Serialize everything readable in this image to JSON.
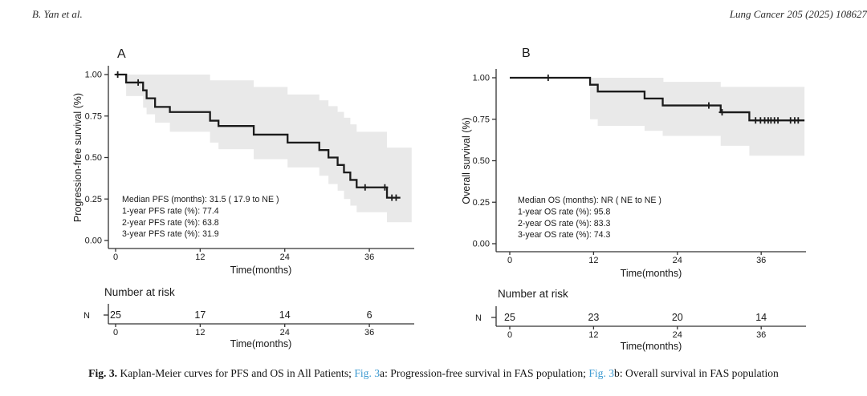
{
  "header": {
    "left": "B. Yan et al.",
    "right": "Lung Cancer 205 (2025) 108627"
  },
  "caption": {
    "segments": [
      {
        "text": "Fig. 3.",
        "style": "bold"
      },
      {
        "text": " Kaplan-Meier curves for PFS and OS in All Patients; ",
        "style": "plain"
      },
      {
        "text": "Fig. 3",
        "style": "link"
      },
      {
        "text": "a: Progression-free survival in FAS population; ",
        "style": "plain"
      },
      {
        "text": "Fig. 3",
        "style": "link"
      },
      {
        "text": "b: Overall survival in FAS population",
        "style": "plain"
      }
    ],
    "link_color": "#3d9ad1"
  },
  "colors": {
    "curve": "#1b1b1b",
    "ci_band": "#e9e9e9",
    "axis": "#333333",
    "text": "#1a1a1a"
  },
  "chart_data": [
    {
      "type": "line",
      "subtype": "kaplan-meier-step",
      "panel_label": "A",
      "ylabel": "Progression-free survival (%)",
      "xlabel": "Time(months)",
      "x_ticks": [
        0,
        12,
        24,
        36
      ],
      "y_ticks": [
        {
          "label": "1.00",
          "value": 1.0
        },
        {
          "label": "0.75",
          "value": 0.75
        },
        {
          "label": "0.50",
          "value": 0.5
        },
        {
          "label": "0.25",
          "value": 0.25
        },
        {
          "label": "0.00",
          "value": 0.0
        }
      ],
      "xlim": [
        0,
        42.5
      ],
      "ylim": [
        0,
        1.0
      ],
      "annotations": [
        "Median PFS (months): 31.5 ( 17.9 to NE )",
        "1-year PFS rate (%): 77.4",
        "2-year PFS rate (%): 63.8",
        "3-year PFS rate (%): 31.9"
      ],
      "survival_steps": [
        [
          0,
          1.0
        ],
        [
          1.5,
          1.0
        ],
        [
          1.5,
          0.952
        ],
        [
          3.9,
          0.952
        ],
        [
          3.9,
          0.905
        ],
        [
          4.4,
          0.905
        ],
        [
          4.4,
          0.857
        ],
        [
          5.6,
          0.857
        ],
        [
          5.6,
          0.805
        ],
        [
          7.7,
          0.805
        ],
        [
          7.7,
          0.774
        ],
        [
          13.4,
          0.774
        ],
        [
          13.4,
          0.722
        ],
        [
          14.6,
          0.722
        ],
        [
          14.6,
          0.69
        ],
        [
          19.6,
          0.69
        ],
        [
          19.6,
          0.638
        ],
        [
          24.4,
          0.638
        ],
        [
          24.4,
          0.59
        ],
        [
          28.9,
          0.59
        ],
        [
          28.9,
          0.545
        ],
        [
          30.2,
          0.545
        ],
        [
          30.2,
          0.5
        ],
        [
          31.5,
          0.5
        ],
        [
          31.5,
          0.455
        ],
        [
          32.4,
          0.455
        ],
        [
          32.4,
          0.41
        ],
        [
          33.3,
          0.41
        ],
        [
          33.3,
          0.365
        ],
        [
          34.2,
          0.365
        ],
        [
          34.2,
          0.32
        ],
        [
          38.5,
          0.32
        ],
        [
          38.5,
          0.258
        ],
        [
          40.4,
          0.258
        ]
      ],
      "censor_marks": [
        [
          0.3,
          1.0
        ],
        [
          3.2,
          0.952
        ],
        [
          35.4,
          0.32
        ],
        [
          38.2,
          0.32
        ],
        [
          39.2,
          0.258
        ],
        [
          39.8,
          0.258
        ]
      ],
      "ci_upper": [
        [
          1.5,
          1.0
        ],
        [
          13.4,
          1.0
        ],
        [
          13.4,
          0.965
        ],
        [
          19.6,
          0.965
        ],
        [
          19.6,
          0.925
        ],
        [
          24.4,
          0.925
        ],
        [
          24.4,
          0.88
        ],
        [
          28.9,
          0.88
        ],
        [
          28.9,
          0.845
        ],
        [
          30.2,
          0.845
        ],
        [
          30.2,
          0.81
        ],
        [
          31.5,
          0.81
        ],
        [
          31.5,
          0.775
        ],
        [
          32.4,
          0.775
        ],
        [
          32.4,
          0.74
        ],
        [
          33.3,
          0.74
        ],
        [
          33.3,
          0.7
        ],
        [
          34.2,
          0.7
        ],
        [
          34.2,
          0.655
        ],
        [
          38.5,
          0.655
        ],
        [
          38.5,
          0.56
        ],
        [
          42,
          0.56
        ]
      ],
      "ci_lower": [
        [
          1.5,
          0.87
        ],
        [
          3.9,
          0.87
        ],
        [
          3.9,
          0.8
        ],
        [
          4.4,
          0.8
        ],
        [
          4.4,
          0.76
        ],
        [
          5.6,
          0.76
        ],
        [
          5.6,
          0.71
        ],
        [
          7.7,
          0.71
        ],
        [
          7.7,
          0.655
        ],
        [
          13.4,
          0.655
        ],
        [
          13.4,
          0.59
        ],
        [
          14.6,
          0.59
        ],
        [
          14.6,
          0.55
        ],
        [
          19.6,
          0.55
        ],
        [
          19.6,
          0.49
        ],
        [
          24.4,
          0.49
        ],
        [
          24.4,
          0.44
        ],
        [
          28.9,
          0.44
        ],
        [
          28.9,
          0.39
        ],
        [
          30.2,
          0.39
        ],
        [
          30.2,
          0.34
        ],
        [
          31.5,
          0.34
        ],
        [
          31.5,
          0.3
        ],
        [
          32.4,
          0.3
        ],
        [
          32.4,
          0.25
        ],
        [
          33.3,
          0.25
        ],
        [
          33.3,
          0.21
        ],
        [
          34.2,
          0.21
        ],
        [
          34.2,
          0.17
        ],
        [
          38.5,
          0.17
        ],
        [
          38.5,
          0.11
        ],
        [
          42,
          0.11
        ]
      ],
      "risk_table": {
        "title": "Number at risk",
        "row_label": "N",
        "times": [
          0,
          12,
          24,
          36
        ],
        "counts": [
          "25",
          "17",
          "14",
          "6"
        ],
        "xlabel": "Time(months)"
      }
    },
    {
      "type": "line",
      "subtype": "kaplan-meier-step",
      "panel_label": "B",
      "ylabel": "Overall survival (%)",
      "xlabel": "Time(months)",
      "x_ticks": [
        0,
        12,
        24,
        36
      ],
      "y_ticks": [
        {
          "label": "1.00",
          "value": 1.0
        },
        {
          "label": "0.75",
          "value": 0.75
        },
        {
          "label": "0.50",
          "value": 0.5
        },
        {
          "label": "0.25",
          "value": 0.25
        },
        {
          "label": "0.00",
          "value": 0.0
        }
      ],
      "xlim": [
        0,
        42.5
      ],
      "ylim": [
        0,
        1.0
      ],
      "annotations": [
        "Median OS (months): NR ( NE to NE )",
        "1-year OS rate (%): 95.8",
        "2-year OS rate (%): 83.3",
        "3-year OS rate (%): 74.3"
      ],
      "survival_steps": [
        [
          0,
          1.0
        ],
        [
          11.5,
          1.0
        ],
        [
          11.5,
          0.958
        ],
        [
          12.6,
          0.958
        ],
        [
          12.6,
          0.917
        ],
        [
          19.3,
          0.917
        ],
        [
          19.3,
          0.875
        ],
        [
          21.9,
          0.875
        ],
        [
          21.9,
          0.833
        ],
        [
          30.2,
          0.833
        ],
        [
          30.2,
          0.792
        ],
        [
          34.3,
          0.792
        ],
        [
          34.3,
          0.743
        ],
        [
          42.2,
          0.743
        ]
      ],
      "censor_marks": [
        [
          5.5,
          1.0
        ],
        [
          28.5,
          0.833
        ],
        [
          30.4,
          0.792
        ],
        [
          35.2,
          0.743
        ],
        [
          35.9,
          0.743
        ],
        [
          36.5,
          0.743
        ],
        [
          37.0,
          0.743
        ],
        [
          37.4,
          0.743
        ],
        [
          37.9,
          0.743
        ],
        [
          38.4,
          0.743
        ],
        [
          40.2,
          0.743
        ],
        [
          40.8,
          0.743
        ],
        [
          41.3,
          0.743
        ]
      ],
      "ci_upper": [
        [
          11.5,
          1.0
        ],
        [
          22.0,
          1.0
        ],
        [
          22.0,
          0.975
        ],
        [
          30.2,
          0.975
        ],
        [
          30.2,
          0.945
        ],
        [
          42.2,
          0.945
        ]
      ],
      "ci_lower": [
        [
          11.5,
          0.75
        ],
        [
          12.6,
          0.75
        ],
        [
          12.6,
          0.71
        ],
        [
          19.3,
          0.71
        ],
        [
          19.3,
          0.68
        ],
        [
          21.9,
          0.68
        ],
        [
          21.9,
          0.65
        ],
        [
          30.2,
          0.65
        ],
        [
          30.2,
          0.59
        ],
        [
          34.3,
          0.59
        ],
        [
          34.3,
          0.53
        ],
        [
          42.2,
          0.53
        ]
      ],
      "risk_table": {
        "title": "Number at risk",
        "row_label": "N",
        "times": [
          0,
          12,
          24,
          36
        ],
        "counts": [
          "25",
          "23",
          "20",
          "14"
        ],
        "xlabel": "Time(months)"
      }
    }
  ]
}
